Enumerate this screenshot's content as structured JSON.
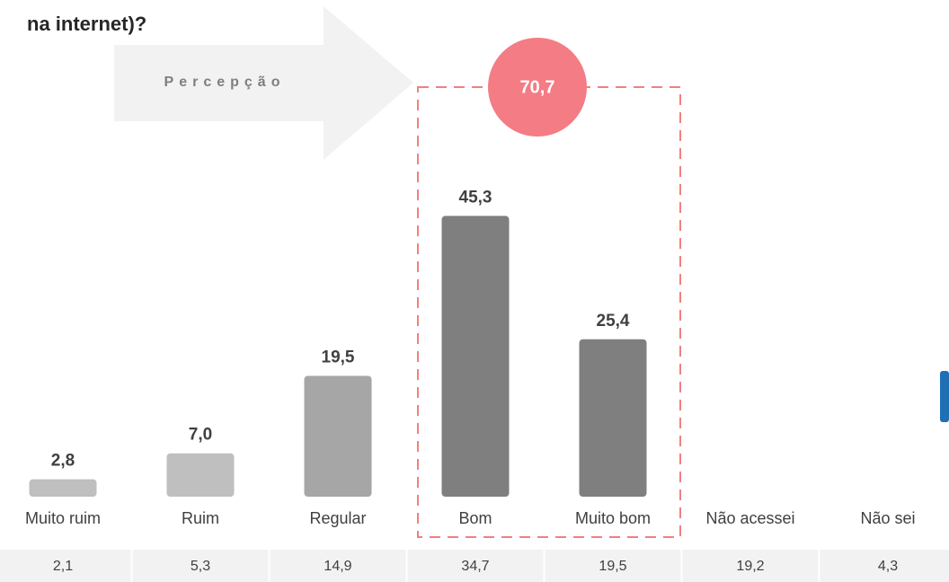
{
  "chart_data": {
    "type": "bar",
    "title": "na internet)?",
    "categories": [
      "Muito ruim",
      "Ruim",
      "Regular",
      "Bom",
      "Muito bom",
      "Não acessei",
      "Não sei"
    ],
    "values": [
      2.8,
      7.0,
      19.5,
      45.3,
      25.4,
      null,
      null
    ],
    "value_labels": [
      "2,8",
      "7,0",
      "19,5",
      "45,3",
      "25,4",
      null,
      null
    ],
    "colors": [
      "#bfbfbf",
      "#bfbfbf",
      "#a6a6a6",
      "#7f7f7f",
      "#7f7f7f",
      null,
      null
    ],
    "arrow_label": "Percepção",
    "annotation": "70,7",
    "table_row": [
      "2,1",
      "5,3",
      "14,9",
      "34,7",
      "19,5",
      "19,2",
      "4,3"
    ]
  }
}
